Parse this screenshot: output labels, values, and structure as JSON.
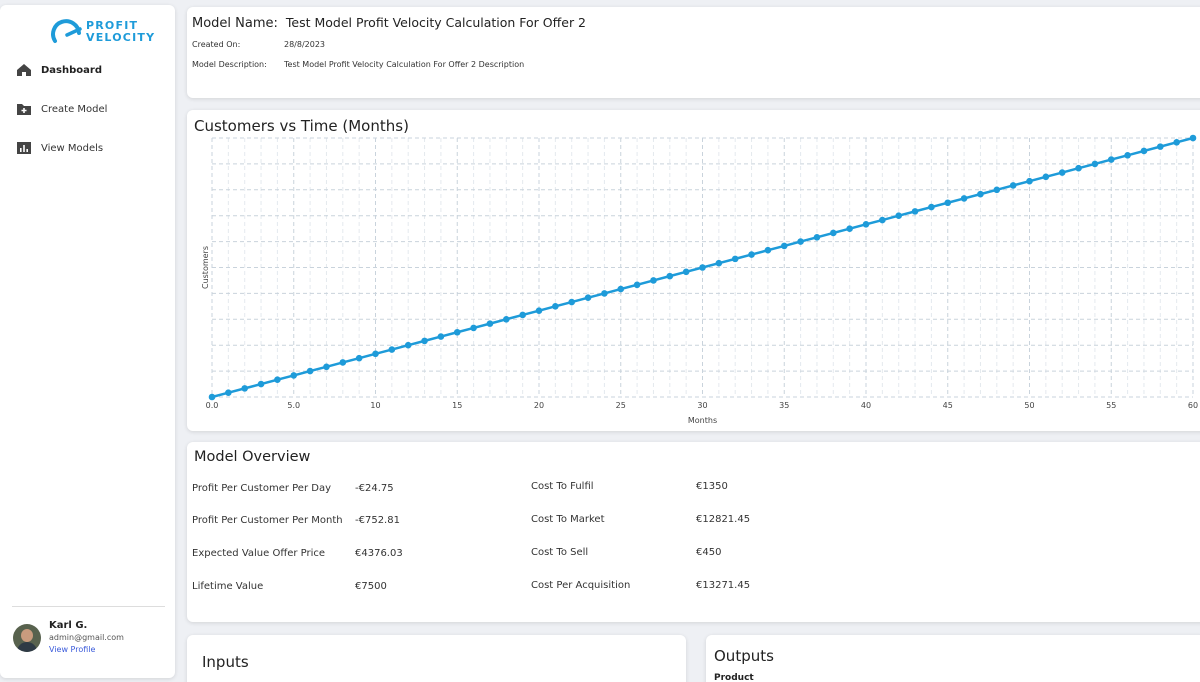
{
  "brand": {
    "line1": "PROFIT",
    "line2": "VELOCITY",
    "color": "#1e9bd9"
  },
  "sidebar": {
    "items": [
      {
        "label": "Dashboard",
        "icon": "home-icon",
        "active": true
      },
      {
        "label": "Create Model",
        "icon": "folder-plus-icon",
        "active": false
      },
      {
        "label": "View Models",
        "icon": "bar-chart-icon",
        "active": false
      }
    ],
    "user": {
      "name": "Karl G.",
      "email": "admin@gmail.com",
      "link": "View Profile"
    }
  },
  "header": {
    "name_label": "Model Name:",
    "name_value": "Test Model Profit Velocity Calculation For Offer 2",
    "created_label": "Created On:",
    "created_value": "28/8/2023",
    "desc_label": "Model Description:",
    "desc_value": "Test Model Profit Velocity Calculation For Offer 2 Description"
  },
  "chart_data": {
    "type": "line",
    "title": "Customers vs Time (Months)",
    "xlabel": "Months",
    "ylabel": "Customers",
    "x_ticks": [
      "0.0",
      "5.0",
      "10",
      "15",
      "20",
      "25",
      "30",
      "35",
      "40",
      "45",
      "50",
      "55",
      "60"
    ],
    "xlim": [
      0,
      60
    ],
    "ylim": [
      0,
      1
    ],
    "grid": true,
    "color": "#1e9bd9",
    "x": [
      0,
      1,
      2,
      3,
      4,
      5,
      6,
      7,
      8,
      9,
      10,
      11,
      12,
      13,
      14,
      15,
      16,
      17,
      18,
      19,
      20,
      21,
      22,
      23,
      24,
      25,
      26,
      27,
      28,
      29,
      30,
      31,
      32,
      33,
      34,
      35,
      36,
      37,
      38,
      39,
      40,
      41,
      42,
      43,
      44,
      45,
      46,
      47,
      48,
      49,
      50,
      51,
      52,
      53,
      54,
      55,
      56,
      57,
      58,
      59,
      60
    ],
    "y": [
      0.0,
      0.0167,
      0.0333,
      0.05,
      0.0667,
      0.0833,
      0.1,
      0.1167,
      0.1333,
      0.15,
      0.1667,
      0.1833,
      0.2,
      0.2167,
      0.2333,
      0.25,
      0.2667,
      0.2833,
      0.3,
      0.3167,
      0.3333,
      0.35,
      0.3667,
      0.3833,
      0.4,
      0.4167,
      0.4333,
      0.45,
      0.4667,
      0.4833,
      0.5,
      0.5167,
      0.5333,
      0.55,
      0.5667,
      0.5833,
      0.6,
      0.6167,
      0.6333,
      0.65,
      0.6667,
      0.6833,
      0.7,
      0.7167,
      0.7333,
      0.75,
      0.7667,
      0.7833,
      0.8,
      0.8167,
      0.8333,
      0.85,
      0.8667,
      0.8833,
      0.9,
      0.9167,
      0.9333,
      0.95,
      0.9667,
      0.9833,
      1.0
    ]
  },
  "overview": {
    "title": "Model Overview",
    "left": [
      {
        "label": "Profit Per Customer Per Day",
        "value": "-€24.75"
      },
      {
        "label": "Profit Per Customer Per Month",
        "value": "-€752.81"
      },
      {
        "label": "Expected Value Offer Price",
        "value": "€4376.03"
      },
      {
        "label": "Lifetime Value",
        "value": "€7500"
      }
    ],
    "right": [
      {
        "label": "Cost To Fulfil",
        "value": "€1350"
      },
      {
        "label": "Cost To Market",
        "value": "€12821.45"
      },
      {
        "label": "Cost To Sell",
        "value": "€450"
      },
      {
        "label": "Cost Per Acquisition",
        "value": "€13271.45"
      }
    ]
  },
  "inputs": {
    "title": "Inputs"
  },
  "outputs": {
    "title": "Outputs",
    "subtitle": "Product"
  }
}
